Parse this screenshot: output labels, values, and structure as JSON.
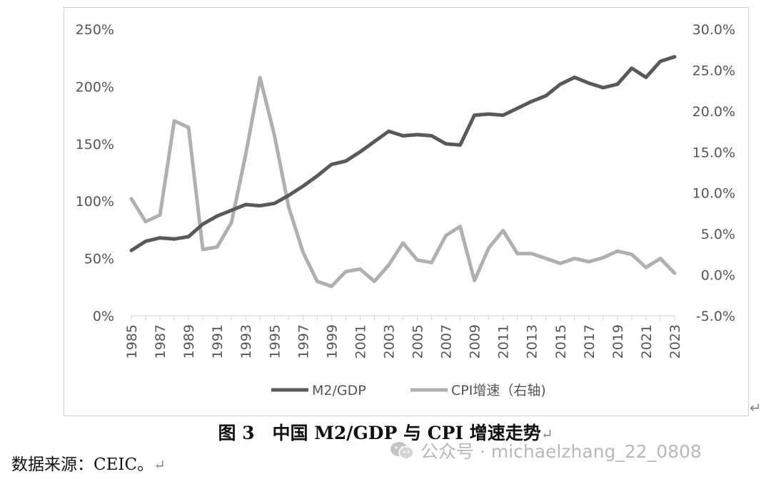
{
  "chart_data": {
    "type": "line",
    "x": [
      1985,
      1986,
      1987,
      1988,
      1989,
      1990,
      1991,
      1992,
      1993,
      1994,
      1995,
      1996,
      1997,
      1998,
      1999,
      2000,
      2001,
      2002,
      2003,
      2004,
      2005,
      2006,
      2007,
      2008,
      2009,
      2010,
      2011,
      2012,
      2013,
      2014,
      2015,
      2016,
      2017,
      2018,
      2019,
      2020,
      2021,
      2022,
      2023
    ],
    "x_tick_labels": [
      "1985",
      "1987",
      "1989",
      "1991",
      "1993",
      "1995",
      "1997",
      "1999",
      "2001",
      "2003",
      "2005",
      "2007",
      "2009",
      "2011",
      "2013",
      "2015",
      "2017",
      "2019",
      "2021",
      "2023"
    ],
    "left_axis": {
      "ticks": [
        "0%",
        "50%",
        "100%",
        "150%",
        "200%",
        "250%"
      ],
      "ylim": [
        0,
        2.5
      ]
    },
    "right_axis": {
      "ticks": [
        "-5.0%",
        "0.0%",
        "5.0%",
        "10.0%",
        "15.0%",
        "20.0%",
        "25.0%",
        "30.0%"
      ],
      "ylim": [
        -0.05,
        0.3
      ]
    },
    "series": [
      {
        "name": "M2/GDP",
        "axis": "left",
        "color": "#595959",
        "values": [
          0.57,
          0.65,
          0.68,
          0.67,
          0.69,
          0.8,
          0.87,
          0.92,
          0.97,
          0.96,
          0.98,
          1.05,
          1.13,
          1.22,
          1.32,
          1.35,
          1.43,
          1.52,
          1.61,
          1.57,
          1.58,
          1.57,
          1.5,
          1.49,
          1.75,
          1.76,
          1.75,
          1.81,
          1.87,
          1.92,
          2.02,
          2.08,
          2.03,
          1.99,
          2.02,
          2.16,
          2.08,
          2.22,
          2.26
        ]
      },
      {
        "name": "CPI增速（右轴)",
        "axis": "right",
        "color": "#b0b0b0",
        "values": [
          0.093,
          0.065,
          0.073,
          0.188,
          0.18,
          0.031,
          0.034,
          0.064,
          0.147,
          0.241,
          0.171,
          0.083,
          0.028,
          -0.008,
          -0.014,
          0.004,
          0.007,
          -0.008,
          0.012,
          0.039,
          0.018,
          0.015,
          0.048,
          0.059,
          -0.007,
          0.033,
          0.054,
          0.026,
          0.026,
          0.02,
          0.014,
          0.02,
          0.016,
          0.021,
          0.029,
          0.025,
          0.009,
          0.02,
          0.002
        ]
      }
    ]
  },
  "caption": {
    "text": "图 3　中国 M2/GDP 与 CPI 增速走势",
    "mark": "↵"
  },
  "source": {
    "text": "数据来源：CEIC。",
    "mark": "↵"
  },
  "return_mark": "↵",
  "watermark": {
    "text": "公众号 · michaelzhang_22_0808",
    "icon": "wechat-icon"
  }
}
